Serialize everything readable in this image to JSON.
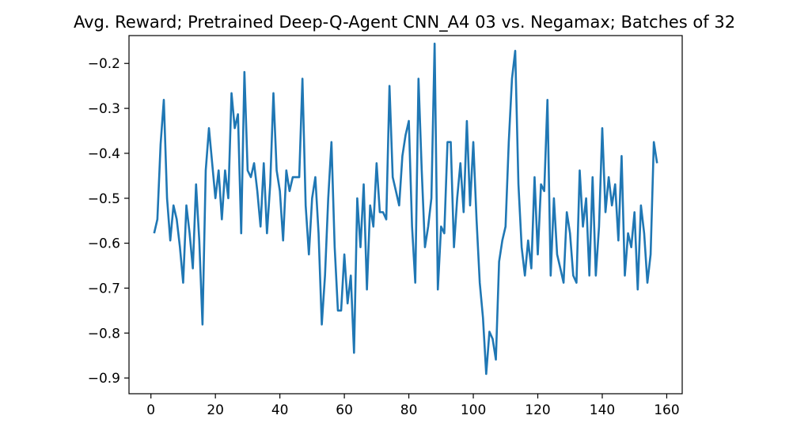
{
  "chart_data": {
    "type": "line",
    "title": "Avg. Reward; Pretrained Deep-Q-Agent CNN_A4 03 vs. Negamax; Batches of 32",
    "xlabel": "",
    "ylabel": "",
    "xlim": [
      -6.8,
      164.8
    ],
    "ylim": [
      -0.935,
      -0.138
    ],
    "xticks": [
      0,
      20,
      40,
      60,
      80,
      100,
      120,
      140,
      160
    ],
    "xtick_labels": [
      "0",
      "20",
      "40",
      "60",
      "80",
      "100",
      "120",
      "140",
      "160"
    ],
    "yticks": [
      -0.9,
      -0.8,
      -0.7,
      -0.6,
      -0.5,
      -0.4,
      -0.3,
      -0.2
    ],
    "ytick_labels": [
      "−0.9",
      "−0.8",
      "−0.7",
      "−0.6",
      "−0.5",
      "−0.4",
      "−0.3",
      "−0.2"
    ],
    "grid": false,
    "line_color": "#1f77b4",
    "series": [
      {
        "name": "",
        "x": [
          1,
          2,
          3,
          4,
          5,
          6,
          7,
          8,
          9,
          10,
          11,
          12,
          13,
          14,
          15,
          16,
          17,
          18,
          19,
          20,
          21,
          22,
          23,
          24,
          25,
          26,
          27,
          28,
          29,
          30,
          31,
          32,
          33,
          34,
          35,
          36,
          37,
          38,
          39,
          40,
          41,
          42,
          43,
          44,
          45,
          46,
          47,
          48,
          49,
          50,
          51,
          52,
          53,
          54,
          55,
          56,
          57,
          58,
          59,
          60,
          61,
          62,
          63,
          64,
          65,
          66,
          67,
          68,
          69,
          70,
          71,
          72,
          73,
          74,
          75,
          76,
          77,
          78,
          79,
          80,
          81,
          82,
          83,
          84,
          85,
          86,
          87,
          88,
          89,
          90,
          91,
          92,
          93,
          94,
          95,
          96,
          97,
          98,
          99,
          100,
          101,
          102,
          103,
          104,
          105,
          106,
          107,
          108,
          109,
          110,
          111,
          112,
          113,
          114,
          115,
          116,
          117,
          118,
          119,
          120,
          121,
          122,
          123,
          124,
          125,
          126,
          127,
          128,
          129,
          130,
          131,
          132,
          133,
          134,
          135,
          136,
          137,
          138,
          139,
          140,
          141,
          142,
          143,
          144,
          145,
          146,
          147,
          148,
          149,
          150,
          151,
          152,
          153,
          154,
          155,
          156,
          157
        ],
        "y": [
          -0.578,
          -0.547,
          -0.38,
          -0.281,
          -0.5,
          -0.594,
          -0.516,
          -0.547,
          -0.609,
          -0.688,
          -0.516,
          -0.578,
          -0.656,
          -0.469,
          -0.594,
          -0.781,
          -0.438,
          -0.344,
          -0.422,
          -0.5,
          -0.438,
          -0.547,
          -0.438,
          -0.5,
          -0.266,
          -0.344,
          -0.313,
          -0.578,
          -0.219,
          -0.438,
          -0.453,
          -0.422,
          -0.484,
          -0.563,
          -0.422,
          -0.578,
          -0.469,
          -0.266,
          -0.438,
          -0.484,
          -0.594,
          -0.438,
          -0.484,
          -0.453,
          -0.453,
          -0.453,
          -0.234,
          -0.516,
          -0.625,
          -0.5,
          -0.453,
          -0.578,
          -0.781,
          -0.672,
          -0.5,
          -0.375,
          -0.609,
          -0.75,
          -0.75,
          -0.625,
          -0.734,
          -0.672,
          -0.844,
          -0.5,
          -0.609,
          -0.469,
          -0.703,
          -0.516,
          -0.563,
          -0.422,
          -0.531,
          -0.531,
          -0.547,
          -0.25,
          -0.453,
          -0.484,
          -0.516,
          -0.406,
          -0.359,
          -0.328,
          -0.563,
          -0.688,
          -0.234,
          -0.438,
          -0.609,
          -0.563,
          -0.5,
          -0.156,
          -0.703,
          -0.563,
          -0.578,
          -0.375,
          -0.375,
          -0.609,
          -0.5,
          -0.422,
          -0.531,
          -0.328,
          -0.516,
          -0.375,
          -0.547,
          -0.688,
          -0.766,
          -0.891,
          -0.797,
          -0.813,
          -0.859,
          -0.641,
          -0.594,
          -0.563,
          -0.375,
          -0.234,
          -0.172,
          -0.469,
          -0.609,
          -0.672,
          -0.594,
          -0.656,
          -0.453,
          -0.625,
          -0.469,
          -0.484,
          -0.281,
          -0.672,
          -0.5,
          -0.625,
          -0.656,
          -0.688,
          -0.531,
          -0.578,
          -0.672,
          -0.688,
          -0.438,
          -0.563,
          -0.5,
          -0.672,
          -0.453,
          -0.672,
          -0.563,
          -0.344,
          -0.531,
          -0.453,
          -0.516,
          -0.469,
          -0.594,
          -0.406,
          -0.672,
          -0.578,
          -0.609,
          -0.531,
          -0.703,
          -0.516,
          -0.578,
          -0.688,
          -0.625,
          -0.375,
          -0.422
        ]
      }
    ]
  }
}
